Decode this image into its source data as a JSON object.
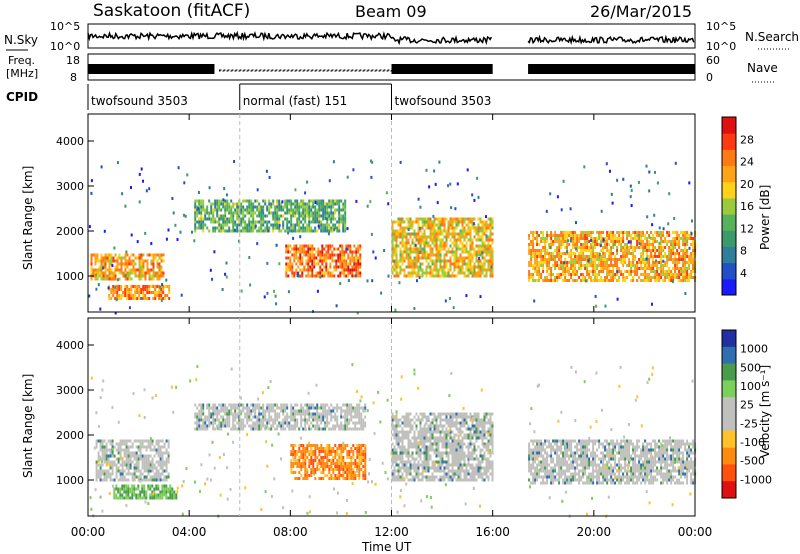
{
  "header": {
    "title": "Saskatoon (fitACF)",
    "beam": "Beam 09",
    "date": "26/Mar/2015"
  },
  "top_panels": {
    "nsky_label": "N.Sky",
    "nsearch_label": "N.Search",
    "freq_label_1": "Freq.",
    "freq_label_2": "[MHz]",
    "nave_label": "Nave",
    "cpid_label": "CPID",
    "noise_ticks_left": [
      "10^5",
      "10^0"
    ],
    "noise_ticks_right": [
      "10^5",
      "10^0"
    ],
    "freq_ticks": [
      "18",
      "8"
    ],
    "nave_ticks": [
      "60",
      "0"
    ]
  },
  "cpid_segments": [
    {
      "label": "twofsound 3503",
      "start": 0,
      "end": 6
    },
    {
      "label": "normal (fast) 151",
      "start": 6,
      "end": 12
    },
    {
      "label": "twofsound 3503",
      "start": 12,
      "end": 16
    }
  ],
  "chart_data": [
    {
      "type": "heatmap",
      "name": "power",
      "ylabel": "Slant Range [km]",
      "yticks": [
        1000,
        2000,
        3000,
        4000
      ],
      "ylim": [
        200,
        4600
      ],
      "xlim": [
        0,
        24
      ],
      "colorbar_label": "Power [dB]",
      "colorbar_ticks": [
        4,
        8,
        12,
        16,
        20,
        24,
        28
      ],
      "colorbar_colors": [
        "#1a1aff",
        "#2050c8",
        "#2f7f9c",
        "#3b9a6a",
        "#58b25a",
        "#9acb3c",
        "#ffd21a",
        "#ffa319",
        "#ff7a14",
        "#ff3a10",
        "#e01010"
      ],
      "data_gaps_ut": [
        [
          16.0,
          17.4
        ]
      ],
      "echo_bands": [
        {
          "start": 0.1,
          "end": 3.0,
          "range_low": 900,
          "range_high": 1500,
          "level": 22
        },
        {
          "start": 0.8,
          "end": 3.2,
          "range_low": 500,
          "range_high": 800,
          "level": 24
        },
        {
          "start": 4.2,
          "end": 10.2,
          "range_low": 2000,
          "range_high": 2700,
          "level": 12
        },
        {
          "start": 7.8,
          "end": 10.8,
          "range_low": 1000,
          "range_high": 1700,
          "level": 26
        },
        {
          "start": 12.0,
          "end": 16.0,
          "range_low": 1000,
          "range_high": 2300,
          "level": 20
        },
        {
          "start": 17.4,
          "end": 24.0,
          "range_low": 900,
          "range_high": 2000,
          "level": 22
        }
      ]
    },
    {
      "type": "heatmap",
      "name": "velocity",
      "ylabel": "Slant Range [km]",
      "yticks": [
        1000,
        2000,
        3000,
        4000
      ],
      "ylim": [
        200,
        4600
      ],
      "xlim": [
        0,
        24
      ],
      "xlabel": "Time UT",
      "xticks": [
        "00:00",
        "04:00",
        "08:00",
        "12:00",
        "16:00",
        "20:00",
        "00:00"
      ],
      "colorbar_label": "Velocity [m s⁻¹]",
      "colorbar_ticks": [
        1000,
        500,
        100,
        25,
        -25,
        -100,
        -500,
        -1000
      ],
      "colorbar_colors": [
        "#2030a0",
        "#2f6fb0",
        "#4a9b4a",
        "#7ad05a",
        "#c0c0bc",
        "#c0c0bc",
        "#ffc22a",
        "#ff8a10",
        "#ff5010",
        "#e01010"
      ],
      "data_gaps_ut": [
        [
          16.0,
          17.4
        ]
      ],
      "echo_bands": [
        {
          "start": 0.3,
          "end": 3.2,
          "range_low": 1000,
          "range_high": 1900,
          "velocity": 0
        },
        {
          "start": 1.0,
          "end": 3.5,
          "range_low": 600,
          "range_high": 900,
          "velocity": 100
        },
        {
          "start": 4.2,
          "end": 11.0,
          "range_low": 2100,
          "range_high": 2700,
          "velocity": 0
        },
        {
          "start": 8.0,
          "end": 11.0,
          "range_low": 1000,
          "range_high": 1800,
          "velocity": -300
        },
        {
          "start": 12.0,
          "end": 16.0,
          "range_low": 1000,
          "range_high": 2500,
          "velocity": 0
        },
        {
          "start": 17.4,
          "end": 24.0,
          "range_low": 900,
          "range_high": 1900,
          "velocity": 0
        }
      ]
    }
  ]
}
